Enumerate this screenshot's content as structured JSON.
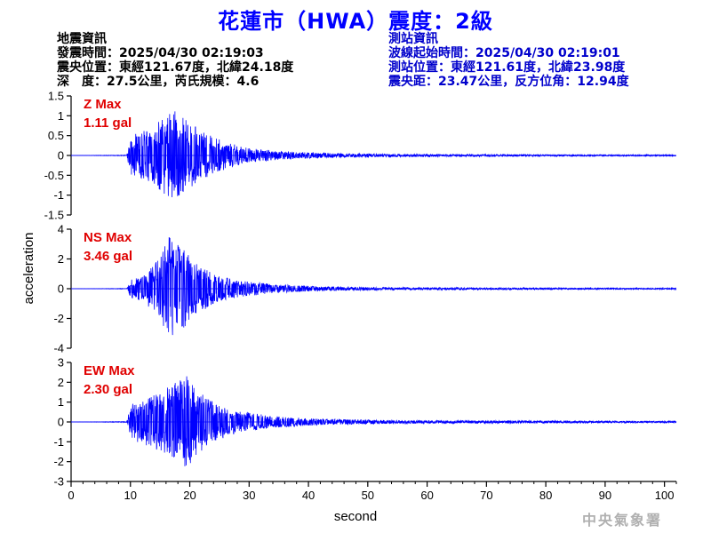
{
  "title": "花蓮市（HWA）震度：2級",
  "event_info": {
    "heading": "地震資訊",
    "origin_time": "發震時間：2025/04/30 02:19:03",
    "epicenter": "震央位置：東經121.67度，北緯24.18度",
    "depth_magnitude": "深　度：27.5公里，芮氏規模：4.6"
  },
  "station_info": {
    "heading": "測站資訊",
    "onset_time": "波線起始時間：2025/04/30 02:19:01",
    "location": "測站位置：東經121.61度，北緯23.98度",
    "distance": "震央距：23.47公里，反方位角：12.94度"
  },
  "footer": "中央氣象署",
  "colors": {
    "title": "#0000ff",
    "trace": "#0000ff",
    "max_label": "#e00000",
    "station_info": "#0000cc"
  },
  "chart_data": {
    "type": "line",
    "xlabel": "second",
    "ylabel": "acceleration",
    "xlim": [
      0,
      102
    ],
    "x_ticks": [
      0,
      10,
      20,
      30,
      40,
      50,
      60,
      70,
      80,
      90,
      100
    ],
    "grid": false,
    "panels": [
      {
        "component": "Z",
        "max_line1": "Z Max",
        "max_line2": "1.11 gal",
        "ylim": [
          -1.5,
          1.5
        ],
        "y_ticks": [
          -1.5,
          -1,
          -0.5,
          0,
          0.5,
          1,
          1.5
        ],
        "y_tick_labels": [
          "-1.5",
          "-1",
          "-0.5",
          "0",
          "0.5",
          "1",
          "1.5"
        ],
        "peak": 1.11,
        "onset_s": 9.5,
        "peak_time_s": 17.5,
        "envelope": [
          {
            "t": 0,
            "a": 0.0
          },
          {
            "t": 9.4,
            "a": 0.01
          },
          {
            "t": 10,
            "a": 0.55
          },
          {
            "t": 12,
            "a": 0.6
          },
          {
            "t": 14,
            "a": 0.75
          },
          {
            "t": 16,
            "a": 1.0
          },
          {
            "t": 17.5,
            "a": 1.11
          },
          {
            "t": 19,
            "a": 0.95
          },
          {
            "t": 22,
            "a": 0.6
          },
          {
            "t": 26,
            "a": 0.35
          },
          {
            "t": 30,
            "a": 0.18
          },
          {
            "t": 36,
            "a": 0.1
          },
          {
            "t": 45,
            "a": 0.05
          },
          {
            "t": 60,
            "a": 0.03
          },
          {
            "t": 102,
            "a": 0.015
          }
        ]
      },
      {
        "component": "NS",
        "max_line1": "NS Max",
        "max_line2": "3.46 gal",
        "ylim": [
          -4,
          4
        ],
        "y_ticks": [
          -4,
          -2,
          0,
          2,
          4
        ],
        "y_tick_labels": [
          "-4",
          "-2",
          "0",
          "2",
          "4"
        ],
        "peak": 3.46,
        "onset_s": 9.5,
        "peak_time_s": 16.5,
        "envelope": [
          {
            "t": 0,
            "a": 0.0
          },
          {
            "t": 9.4,
            "a": 0.02
          },
          {
            "t": 10,
            "a": 0.6
          },
          {
            "t": 12,
            "a": 0.9
          },
          {
            "t": 14,
            "a": 1.6
          },
          {
            "t": 16.5,
            "a": 3.46
          },
          {
            "t": 18.5,
            "a": 2.9
          },
          {
            "t": 21,
            "a": 1.8
          },
          {
            "t": 24,
            "a": 1.0
          },
          {
            "t": 28,
            "a": 0.6
          },
          {
            "t": 34,
            "a": 0.3
          },
          {
            "t": 42,
            "a": 0.15
          },
          {
            "t": 55,
            "a": 0.08
          },
          {
            "t": 102,
            "a": 0.04
          }
        ]
      },
      {
        "component": "EW",
        "max_line1": "EW Max",
        "max_line2": "2.30 gal",
        "ylim": [
          -3,
          3
        ],
        "y_ticks": [
          -3,
          -2,
          -1,
          0,
          1,
          2,
          3
        ],
        "y_tick_labels": [
          "-3",
          "-2",
          "-1",
          "0",
          "1",
          "2",
          "3"
        ],
        "peak": 2.3,
        "onset_s": 9.5,
        "peak_time_s": 19.5,
        "envelope": [
          {
            "t": 0,
            "a": 0.0
          },
          {
            "t": 9.4,
            "a": 0.02
          },
          {
            "t": 10,
            "a": 0.9
          },
          {
            "t": 12,
            "a": 1.1
          },
          {
            "t": 15,
            "a": 1.5
          },
          {
            "t": 17,
            "a": 1.9
          },
          {
            "t": 19.5,
            "a": 2.3
          },
          {
            "t": 21,
            "a": 1.7
          },
          {
            "t": 24,
            "a": 1.0
          },
          {
            "t": 28,
            "a": 0.55
          },
          {
            "t": 34,
            "a": 0.3
          },
          {
            "t": 42,
            "a": 0.15
          },
          {
            "t": 55,
            "a": 0.08
          },
          {
            "t": 102,
            "a": 0.04
          }
        ]
      }
    ]
  }
}
